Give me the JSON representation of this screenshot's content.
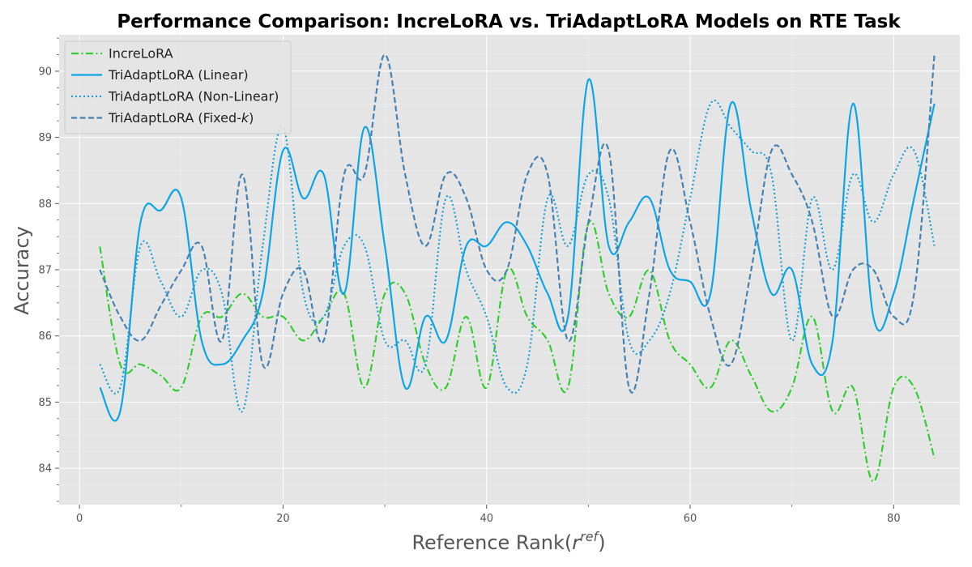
{
  "chart_data": {
    "type": "line",
    "title": "Performance Comparison: IncreLoRA vs. TriAdaptLoRA Models on RTE Task",
    "xlabel": "Reference Rank(",
    "xlabel_sup": "ref",
    "xlabel_var": "r",
    "xlabel_close": ")",
    "ylabel": "Accuracy",
    "xlim": [
      -2,
      86.5
    ],
    "ylim": [
      83.45,
      90.55
    ],
    "xticks": [
      0,
      20,
      40,
      60,
      80
    ],
    "yticks": [
      84,
      85,
      86,
      87,
      88,
      89,
      90
    ],
    "xticklabels": [
      "0",
      "20",
      "40",
      "60",
      "80"
    ],
    "yticklabels": [
      "84",
      "85",
      "86",
      "87",
      "88",
      "89",
      "90"
    ],
    "grid": true,
    "legend_position": "top-left",
    "x": [
      2,
      4,
      6,
      8,
      10,
      12,
      14,
      16,
      18,
      20,
      22,
      24,
      26,
      28,
      30,
      32,
      34,
      36,
      38,
      40,
      42,
      44,
      46,
      48,
      50,
      52,
      54,
      56,
      58,
      60,
      62,
      64,
      66,
      68,
      70,
      72,
      74,
      76,
      78,
      80,
      82,
      84
    ],
    "series": [
      {
        "name": "IncreLoRA",
        "style": "dashdot",
        "color": "#32cd32",
        "values": [
          87.35,
          85.57,
          85.57,
          85.4,
          85.22,
          86.29,
          86.29,
          86.64,
          86.29,
          86.29,
          85.93,
          86.29,
          86.64,
          85.22,
          86.64,
          86.64,
          85.57,
          85.22,
          86.29,
          85.22,
          86.99,
          86.29,
          85.93,
          85.22,
          87.7,
          86.64,
          86.29,
          86.99,
          85.93,
          85.57,
          85.22,
          85.93,
          85.4,
          84.86,
          85.22,
          86.29,
          84.86,
          85.22,
          83.8,
          85.22,
          85.22,
          84.15
        ]
      },
      {
        "name": "TriAdaptLoRA (Linear)",
        "style": "solid",
        "color": "#0ea5e4",
        "values": [
          85.22,
          84.86,
          87.72,
          87.9,
          88.08,
          85.93,
          85.57,
          85.93,
          86.64,
          88.8,
          88.08,
          88.44,
          86.64,
          89.15,
          87.36,
          85.22,
          86.29,
          85.93,
          87.36,
          87.36,
          87.72,
          87.36,
          86.64,
          86.29,
          89.87,
          87.36,
          87.72,
          88.08,
          87.0,
          86.82,
          86.64,
          89.51,
          87.9,
          86.64,
          87.0,
          85.57,
          85.93,
          89.51,
          86.29,
          86.64,
          88.08,
          89.51
        ]
      },
      {
        "name": "TriAdaptLoRA (Non-Linear)",
        "style": "dotted",
        "color": "#1a9fd6",
        "values": [
          85.57,
          85.22,
          87.36,
          86.82,
          86.29,
          86.99,
          86.64,
          84.86,
          87.36,
          89.15,
          86.64,
          86.29,
          87.36,
          87.36,
          85.93,
          85.93,
          85.57,
          88.08,
          86.99,
          86.29,
          85.22,
          85.57,
          88.08,
          87.36,
          88.44,
          88.08,
          85.93,
          85.93,
          86.64,
          88.08,
          89.51,
          89.15,
          88.8,
          88.44,
          85.93,
          88.08,
          87.0,
          88.44,
          87.72,
          88.44,
          88.8,
          87.36
        ]
      },
      {
        "name": "TriAdaptLoRA (Fixed-k)",
        "name_parts": [
          "TriAdaptLoRA (Fixed-",
          "k",
          ")"
        ],
        "style": "dashed",
        "color": "#4682b4",
        "values": [
          87.0,
          86.29,
          85.93,
          86.46,
          86.99,
          87.36,
          85.93,
          88.44,
          85.57,
          86.64,
          86.99,
          85.93,
          88.44,
          88.44,
          90.25,
          88.44,
          87.36,
          88.44,
          88.08,
          87.0,
          87.0,
          88.44,
          88.44,
          85.93,
          87.72,
          88.8,
          85.22,
          86.64,
          88.8,
          87.72,
          86.29,
          85.57,
          87.0,
          88.8,
          88.44,
          87.72,
          86.29,
          87.0,
          87.0,
          86.29,
          86.64,
          90.25
        ]
      }
    ]
  }
}
